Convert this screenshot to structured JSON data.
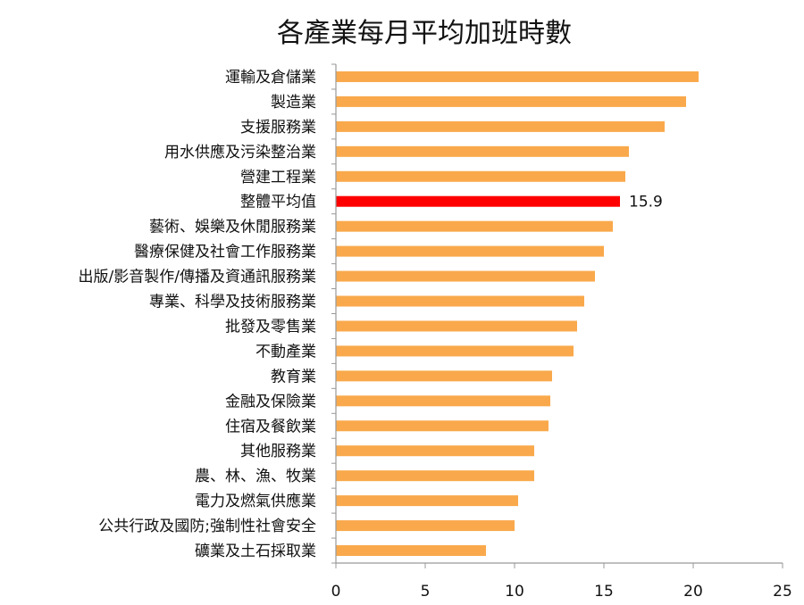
{
  "chart_data": {
    "type": "bar",
    "orientation": "horizontal",
    "title": "各產業每月平均加班時數",
    "xlabel": "",
    "ylabel": "",
    "xlim": [
      0,
      25
    ],
    "x_ticks": [
      "0",
      "5",
      "10",
      "15",
      "20",
      "25"
    ],
    "grid": false,
    "legend": "none",
    "categories": [
      "運輸及倉儲業",
      "製造業",
      "支援服務業",
      "用水供應及污染整治業",
      "營建工程業",
      "整體平均值",
      "藝術、娛樂及休閒服務業",
      "醫療保健及社會工作服務業",
      "出版/影音製作/傳播及資通訊服務業",
      "專業、科學及技術服務業",
      "批發及零售業",
      "不動產業",
      "教育業",
      "金融及保險業",
      "住宿及餐飲業",
      "其他服務業",
      "農、林、漁、牧業",
      "電力及燃氣供應業",
      "公共行政及國防;強制性社會安全",
      "礦業及土石採取業"
    ],
    "values": [
      20.3,
      19.6,
      18.4,
      16.4,
      16.2,
      15.9,
      15.5,
      15.0,
      14.5,
      13.9,
      13.5,
      13.3,
      12.1,
      12.0,
      11.9,
      11.1,
      11.1,
      10.2,
      10.0,
      8.4
    ],
    "highlight_index": 5,
    "data_labels": [
      {
        "index": 5,
        "text": "15.9"
      }
    ],
    "colors": {
      "bar": "#F9A94B",
      "highlight": "#FF0000",
      "axis": "#999999"
    }
  }
}
